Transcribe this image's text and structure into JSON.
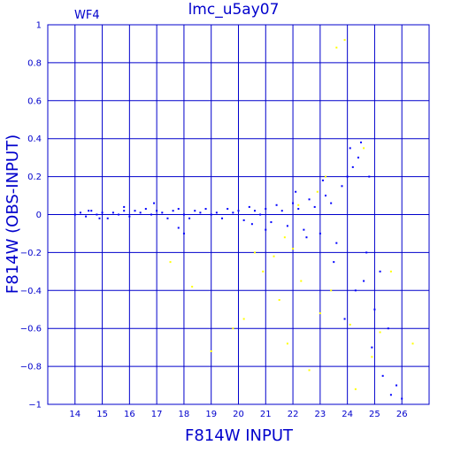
{
  "colors": {
    "axis": "#0000cc",
    "blue_points": "#0000ff",
    "yellow_points": "#ffff00",
    "background": "#ffffff"
  },
  "chart_data": {
    "type": "scatter",
    "title": "lmc_u5ay07",
    "panel_label": "WF4",
    "xlabel": "F814W  INPUT",
    "ylabel": "F814W (OBS-INPUT)",
    "xlim": [
      13,
      27
    ],
    "ylim": [
      -1,
      1
    ],
    "grid": true,
    "x_ticks": [
      14,
      15,
      16,
      17,
      18,
      19,
      20,
      21,
      22,
      23,
      24,
      25,
      26
    ],
    "x_tick_labels": [
      "14",
      "15",
      "16",
      "17",
      "18",
      "19",
      "20",
      "21",
      "22",
      "23",
      "24",
      "25",
      "26"
    ],
    "y_ticks": [
      -1,
      -0.8,
      -0.6,
      -0.4,
      -0.2,
      0,
      0.2,
      0.4,
      0.6,
      0.8,
      1
    ],
    "y_tick_labels": [
      "−1",
      "−0.8",
      "−0.6",
      "−0.4",
      "−0.2",
      "0",
      "0.2",
      "0.4",
      "0.6",
      "0.8",
      "1"
    ],
    "series": [
      {
        "color": "#0000ff",
        "points": [
          [
            14.0,
            0.0
          ],
          [
            14.2,
            0.01
          ],
          [
            14.4,
            -0.01
          ],
          [
            14.6,
            0.02
          ],
          [
            14.8,
            0.0
          ],
          [
            15.0,
            0.01
          ],
          [
            15.2,
            -0.02
          ],
          [
            15.4,
            0.01
          ],
          [
            15.6,
            0.0
          ],
          [
            15.8,
            0.02
          ],
          [
            16.0,
            -0.01
          ],
          [
            16.2,
            0.02
          ],
          [
            16.4,
            0.01
          ],
          [
            16.6,
            0.03
          ],
          [
            16.8,
            0.0
          ],
          [
            17.0,
            0.02
          ],
          [
            17.2,
            0.01
          ],
          [
            17.4,
            -0.02
          ],
          [
            17.6,
            0.02
          ],
          [
            17.8,
            0.03
          ],
          [
            18.0,
            0.0
          ],
          [
            18.2,
            -0.02
          ],
          [
            18.4,
            0.02
          ],
          [
            18.6,
            0.01
          ],
          [
            18.8,
            0.03
          ],
          [
            19.0,
            0.0
          ],
          [
            19.2,
            0.01
          ],
          [
            19.4,
            -0.02
          ],
          [
            19.6,
            0.03
          ],
          [
            19.8,
            0.01
          ],
          [
            20.0,
            0.02
          ],
          [
            20.2,
            -0.03
          ],
          [
            20.4,
            0.04
          ],
          [
            20.6,
            0.02
          ],
          [
            20.8,
            0.0
          ],
          [
            21.0,
            0.03
          ],
          [
            21.2,
            -0.04
          ],
          [
            21.4,
            0.05
          ],
          [
            21.6,
            0.02
          ],
          [
            21.8,
            -0.06
          ],
          [
            22.0,
            0.06
          ],
          [
            22.2,
            0.03
          ],
          [
            22.4,
            -0.08
          ],
          [
            22.6,
            0.08
          ],
          [
            22.8,
            0.04
          ],
          [
            23.0,
            -0.1
          ],
          [
            23.2,
            0.1
          ],
          [
            23.4,
            0.06
          ],
          [
            23.6,
            -0.15
          ],
          [
            23.8,
            0.15
          ],
          [
            24.0,
            0.2
          ],
          [
            24.2,
            0.25
          ],
          [
            24.4,
            0.3
          ],
          [
            24.6,
            -0.35
          ],
          [
            24.8,
            0.2
          ],
          [
            25.0,
            -0.5
          ],
          [
            23.5,
            -0.25
          ],
          [
            24.3,
            -0.4
          ],
          [
            24.9,
            -0.7
          ],
          [
            25.3,
            -0.85
          ],
          [
            25.6,
            -0.95
          ],
          [
            24.5,
            0.38
          ],
          [
            22.5,
            -0.12
          ],
          [
            21.0,
            -0.08
          ],
          [
            17.8,
            -0.07
          ],
          [
            18.0,
            -0.1
          ],
          [
            25.2,
            -0.3
          ],
          [
            23.9,
            -0.55
          ],
          [
            24.1,
            0.35
          ],
          [
            20.5,
            -0.05
          ],
          [
            15.8,
            0.04
          ],
          [
            16.9,
            0.06
          ],
          [
            14.5,
            0.02
          ],
          [
            14.9,
            -0.02
          ],
          [
            22.1,
            0.12
          ],
          [
            23.1,
            0.18
          ],
          [
            24.7,
            -0.2
          ],
          [
            25.5,
            -0.6
          ],
          [
            25.8,
            -0.9
          ],
          [
            26.0,
            -0.97
          ]
        ]
      },
      {
        "color": "#ffff00",
        "points": [
          [
            17.5,
            -0.25
          ],
          [
            18.3,
            -0.38
          ],
          [
            19.0,
            -0.72
          ],
          [
            19.8,
            -0.6
          ],
          [
            20.2,
            -0.55
          ],
          [
            20.9,
            -0.3
          ],
          [
            21.3,
            -0.22
          ],
          [
            21.5,
            -0.45
          ],
          [
            21.8,
            -0.68
          ],
          [
            22.0,
            -0.18
          ],
          [
            22.3,
            -0.35
          ],
          [
            22.6,
            -0.82
          ],
          [
            22.9,
            0.12
          ],
          [
            23.2,
            0.2
          ],
          [
            23.4,
            -0.4
          ],
          [
            23.6,
            0.88
          ],
          [
            23.9,
            0.92
          ],
          [
            24.1,
            -0.58
          ],
          [
            24.3,
            -0.92
          ],
          [
            24.6,
            0.35
          ],
          [
            24.9,
            -0.75
          ],
          [
            25.2,
            -0.62
          ],
          [
            25.6,
            -0.3
          ],
          [
            26.4,
            -0.68
          ],
          [
            23.0,
            -0.52
          ],
          [
            22.2,
            0.05
          ],
          [
            21.7,
            -0.12
          ],
          [
            20.6,
            -0.2
          ]
        ]
      }
    ]
  }
}
